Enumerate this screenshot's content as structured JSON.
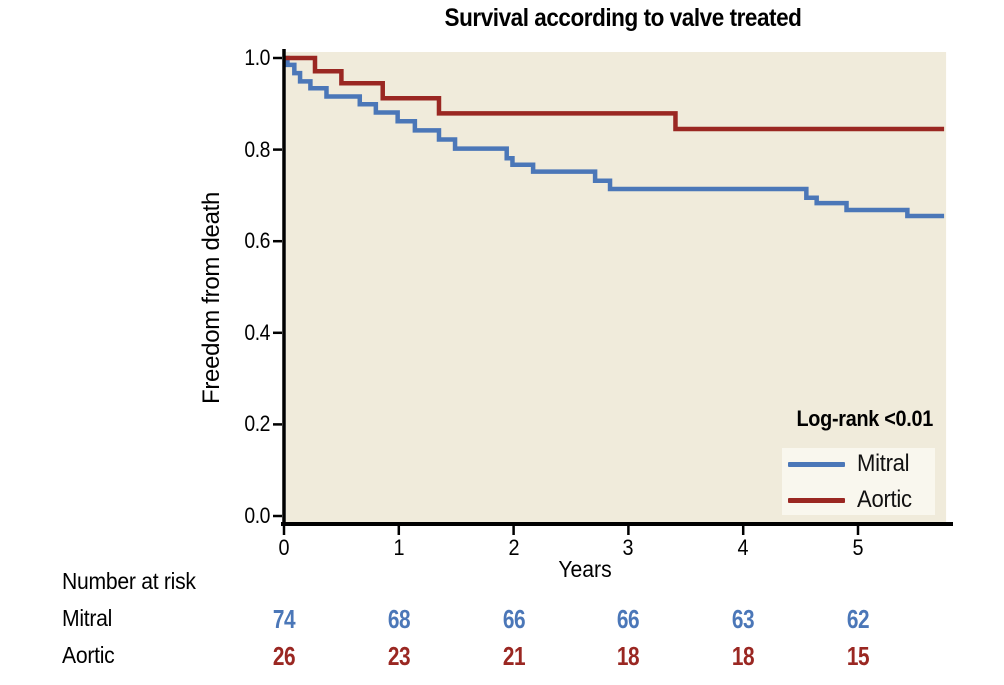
{
  "chart_data": {
    "type": "line",
    "subtype": "kaplan_meier_step_survival",
    "title": "Survival according to valve treated",
    "xlabel": "Years",
    "ylabel": "Freedom from death",
    "annotation": "Log-rank <0.01",
    "xlim": [
      0,
      5.75
    ],
    "ylim": [
      0.0,
      1.0
    ],
    "x_ticks": [
      "0",
      "1",
      "2",
      "3",
      "4",
      "5"
    ],
    "y_ticks": [
      "0.0",
      "0.2",
      "0.4",
      "0.6",
      "0.8",
      "1.0"
    ],
    "grid": false,
    "legend_position": "inside-bottom-right",
    "background_color": "#f0ebdb",
    "series": [
      {
        "name": "Mitral",
        "color": "#4b77b8",
        "steps": [
          [
            0,
            1.0
          ],
          [
            0.03,
            0.985
          ],
          [
            0.09,
            0.967
          ],
          [
            0.14,
            0.949
          ],
          [
            0.23,
            0.934
          ],
          [
            0.37,
            0.916
          ],
          [
            0.66,
            0.899
          ],
          [
            0.8,
            0.881
          ],
          [
            0.99,
            0.862
          ],
          [
            1.14,
            0.842
          ],
          [
            1.35,
            0.822
          ],
          [
            1.49,
            0.802
          ],
          [
            1.94,
            0.781
          ],
          [
            1.99,
            0.767
          ],
          [
            2.17,
            0.752
          ],
          [
            2.71,
            0.732
          ],
          [
            2.84,
            0.714
          ],
          [
            4.55,
            0.695
          ],
          [
            4.64,
            0.683
          ],
          [
            4.9,
            0.668
          ],
          [
            5.43,
            0.655
          ]
        ]
      },
      {
        "name": "Aortic",
        "color": "#9a2722",
        "steps": [
          [
            0,
            1.0
          ],
          [
            0.27,
            0.971
          ],
          [
            0.5,
            0.945
          ],
          [
            0.86,
            0.912
          ],
          [
            1.35,
            0.879
          ],
          [
            3.41,
            0.845
          ]
        ]
      }
    ]
  },
  "legend": {
    "items": [
      {
        "label": "Mitral",
        "color": "#4b77b8"
      },
      {
        "label": "Aortic",
        "color": "#9a2722"
      }
    ],
    "background_color": "#f9f7ee"
  },
  "risk_table": {
    "heading": "Number at risk",
    "rows": [
      {
        "label": "Mitral",
        "color": "#4b77b8",
        "values": [
          "74",
          "68",
          "66",
          "66",
          "63",
          "62"
        ]
      },
      {
        "label": "Aortic",
        "color": "#9a2722",
        "values": [
          "26",
          "23",
          "21",
          "18",
          "18",
          "15"
        ]
      }
    ]
  },
  "colors": {
    "axis": "#000000",
    "plot_background": "#f0ebdb",
    "legend_background": "#f9f7ee"
  }
}
